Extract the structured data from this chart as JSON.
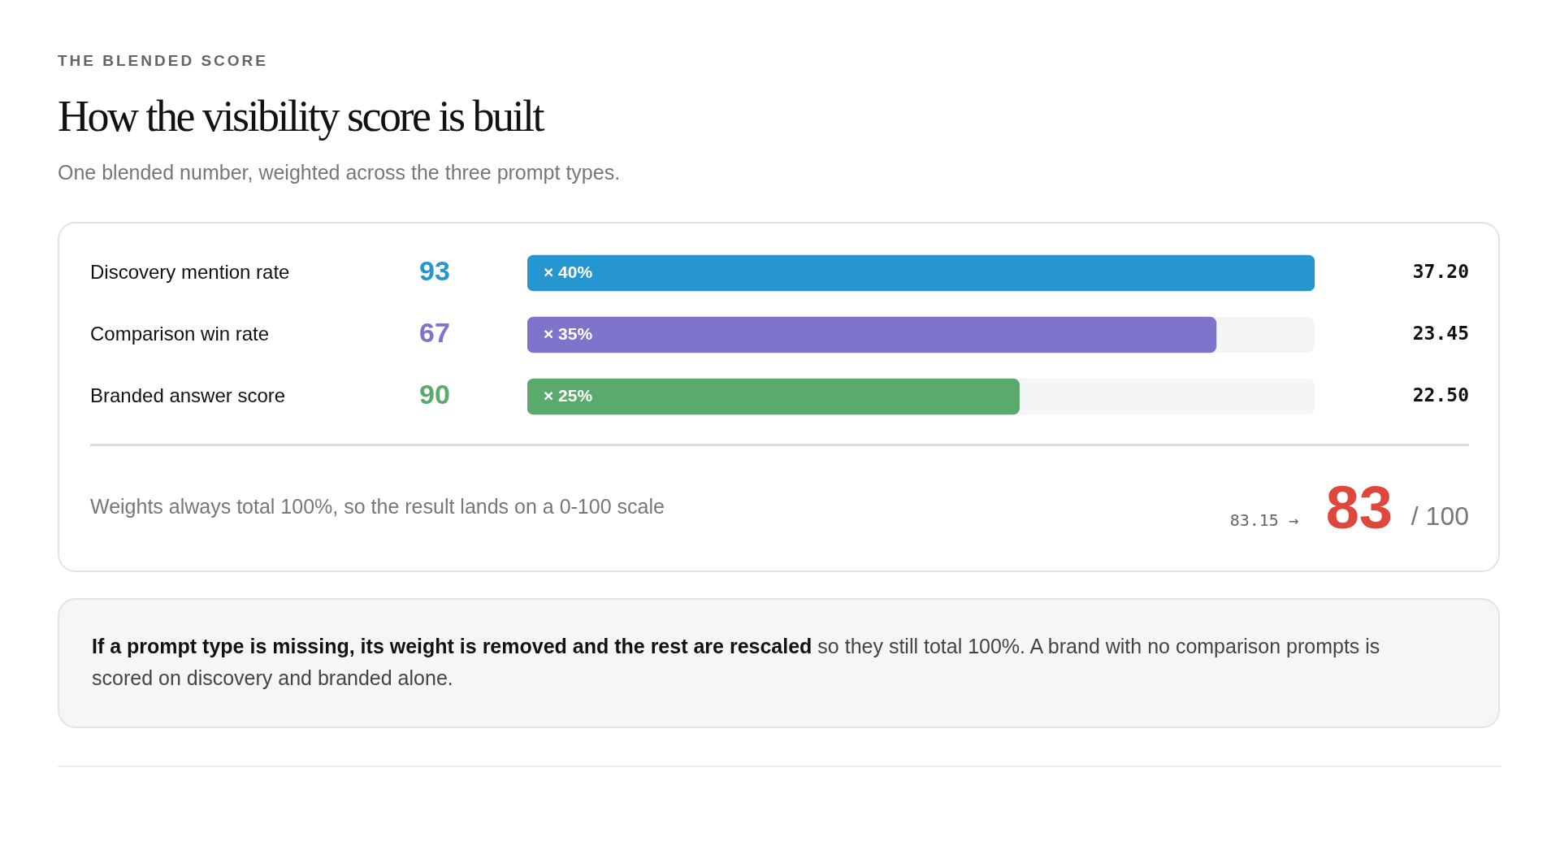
{
  "chart_data": {
    "type": "bar",
    "orientation": "horizontal",
    "title": "How the visibility score is built",
    "subtitle": "One blended number, weighted across the three prompt types.",
    "categories": [
      "Discovery mention rate",
      "Comparison win rate",
      "Branded answer score"
    ],
    "values": [
      40,
      35,
      25
    ],
    "colors": [
      "#2596cf",
      "#7f74cc",
      "#5aaa6e"
    ],
    "value_labels": [
      "× 40%",
      "× 35%",
      "× 25%"
    ],
    "xlim": [
      0,
      40
    ],
    "annotations": [
      "THE BLENDED SCORE",
      "93",
      "67",
      "90",
      "37.20",
      "23.45",
      "22.50",
      "Weights always total 100%, so the result lands on a 0-100 scale",
      "83.15 →",
      "83",
      "/ 100",
      "If a prompt type is missing, its weight is removed and the rest are rescaled",
      "so they still total 100%. A brand with no comparison prompts is scored on discovery and branded alone."
    ]
  }
}
